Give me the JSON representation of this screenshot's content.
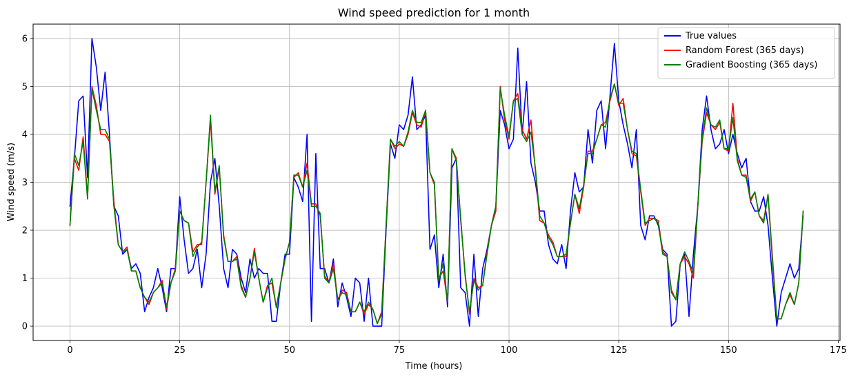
{
  "chart_data": {
    "type": "line",
    "title": "Wind speed prediction for 1 month",
    "xlabel": "Time (hours)",
    "ylabel": "Wind speed (m/s)",
    "xlim": [
      -8.4,
      175.4
    ],
    "ylim": [
      -0.3,
      6.3
    ],
    "xticks": [
      0,
      25,
      50,
      75,
      100,
      125,
      150,
      175
    ],
    "yticks": [
      0,
      1,
      2,
      3,
      4,
      5,
      6
    ],
    "grid": true,
    "legend_position": "top-right",
    "series": [
      {
        "name": "True values",
        "color": "#0000ff",
        "values": [
          2.5,
          3.5,
          4.7,
          4.8,
          3.1,
          6.0,
          5.4,
          4.5,
          5.3,
          4.0,
          2.5,
          2.3,
          1.5,
          1.6,
          1.2,
          1.3,
          1.1,
          0.3,
          0.6,
          0.8,
          1.2,
          0.8,
          0.3,
          1.2,
          1.2,
          2.7,
          1.8,
          1.1,
          1.2,
          1.6,
          0.8,
          1.5,
          3.0,
          3.5,
          2.5,
          1.2,
          0.8,
          1.6,
          1.5,
          1.0,
          0.7,
          1.4,
          1.0,
          1.2,
          1.1,
          1.1,
          0.1,
          0.1,
          0.9,
          1.5,
          1.5,
          3.1,
          2.9,
          2.6,
          4.0,
          0.1,
          3.6,
          1.2,
          1.2,
          0.9,
          1.4,
          0.4,
          0.9,
          0.6,
          0.2,
          1.0,
          0.9,
          0.1,
          1.0,
          0.0,
          0.0,
          0.0,
          2.0,
          3.8,
          3.5,
          4.2,
          4.1,
          4.4,
          5.2,
          4.1,
          4.2,
          4.4,
          1.6,
          1.9,
          0.8,
          1.5,
          0.4,
          3.3,
          3.5,
          0.8,
          0.7,
          0.0,
          1.5,
          0.2,
          1.2,
          1.6,
          2.1,
          2.5,
          4.5,
          4.2,
          3.7,
          3.9,
          5.8,
          4.0,
          5.1,
          3.4,
          3.0,
          2.4,
          2.4,
          1.7,
          1.4,
          1.3,
          1.7,
          1.2,
          2.4,
          3.2,
          2.8,
          2.9,
          4.1,
          3.4,
          4.5,
          4.7,
          3.7,
          4.8,
          5.9,
          4.7,
          4.2,
          3.8,
          3.3,
          4.1,
          2.1,
          1.8,
          2.3,
          2.3,
          2.1,
          1.6,
          1.5,
          0.0,
          0.1,
          1.3,
          1.5,
          0.2,
          1.5,
          2.5,
          4.1,
          4.8,
          4.1,
          3.7,
          3.8,
          4.1,
          3.6,
          4.0,
          3.6,
          3.3,
          3.5,
          2.6,
          2.4,
          2.4,
          2.7,
          2.1,
          1.0,
          0.0,
          0.7,
          1.0,
          1.3,
          1.0,
          1.2,
          2.3
        ]
      },
      {
        "name": "Random Forest (365 days)",
        "color": "#ff0000",
        "values": [
          2.1,
          3.5,
          3.25,
          3.95,
          2.7,
          5.0,
          4.6,
          4.0,
          4.0,
          3.85,
          2.6,
          1.7,
          1.55,
          1.65,
          1.15,
          1.15,
          0.8,
          0.6,
          0.45,
          0.7,
          0.8,
          0.95,
          0.35,
          0.9,
          1.2,
          2.4,
          2.2,
          2.15,
          1.55,
          1.7,
          1.7,
          3.0,
          4.3,
          2.75,
          3.3,
          1.9,
          1.35,
          1.35,
          1.45,
          0.85,
          0.6,
          1.0,
          1.62,
          1.0,
          0.5,
          0.85,
          0.9,
          0.4,
          0.9,
          1.4,
          1.75,
          3.1,
          3.2,
          2.9,
          3.4,
          2.55,
          2.55,
          2.3,
          1.05,
          0.9,
          1.3,
          0.55,
          0.75,
          0.7,
          0.3,
          0.3,
          0.5,
          0.25,
          0.45,
          0.35,
          0.05,
          0.3,
          2.1,
          3.9,
          3.7,
          3.8,
          3.75,
          4.0,
          4.45,
          4.2,
          4.15,
          4.5,
          3.2,
          2.95,
          1.0,
          1.15,
          0.5,
          3.7,
          3.5,
          2.2,
          1.1,
          0.25,
          1.0,
          0.8,
          0.85,
          1.55,
          2.1,
          2.4,
          5.0,
          4.3,
          3.9,
          4.7,
          4.85,
          4.1,
          3.9,
          4.3,
          3.25,
          2.2,
          2.15,
          1.9,
          1.75,
          1.45,
          1.45,
          1.45,
          2.15,
          2.75,
          2.35,
          2.9,
          3.65,
          3.65,
          3.9,
          4.2,
          4.25,
          4.7,
          5.05,
          4.6,
          4.75,
          4.1,
          3.6,
          3.55,
          2.8,
          2.1,
          2.25,
          2.25,
          2.2,
          1.55,
          1.45,
          0.75,
          0.55,
          1.3,
          1.45,
          1.3,
          1.0,
          2.5,
          3.85,
          4.45,
          4.2,
          4.1,
          4.25,
          3.7,
          3.65,
          4.65,
          3.5,
          3.15,
          3.15,
          2.6,
          2.8,
          2.3,
          2.2,
          2.75,
          1.45,
          0.15,
          0.15,
          0.45,
          0.65,
          0.45,
          0.9,
          2.4
        ]
      },
      {
        "name": "Gradient Boosting (365 days)",
        "color": "#008000",
        "values": [
          2.1,
          3.6,
          3.35,
          3.85,
          2.65,
          4.95,
          4.5,
          4.1,
          4.1,
          3.9,
          2.5,
          1.7,
          1.55,
          1.6,
          1.15,
          1.15,
          0.8,
          0.6,
          0.5,
          0.7,
          0.8,
          0.9,
          0.4,
          0.9,
          1.15,
          2.4,
          2.2,
          2.15,
          1.45,
          1.65,
          1.75,
          3.0,
          4.4,
          2.8,
          3.35,
          1.85,
          1.35,
          1.35,
          1.4,
          0.8,
          0.6,
          1.0,
          1.55,
          1.0,
          0.5,
          0.8,
          1.0,
          0.38,
          0.9,
          1.4,
          1.75,
          3.15,
          3.15,
          2.9,
          3.25,
          2.5,
          2.5,
          2.35,
          1.0,
          0.9,
          1.2,
          0.55,
          0.7,
          0.65,
          0.3,
          0.3,
          0.5,
          0.3,
          0.5,
          0.35,
          0.05,
          0.25,
          2.1,
          3.9,
          3.75,
          3.85,
          3.75,
          4.05,
          4.5,
          4.25,
          4.25,
          4.5,
          3.2,
          3.0,
          0.95,
          1.3,
          0.5,
          3.7,
          3.45,
          2.25,
          1.05,
          0.3,
          0.95,
          0.75,
          0.85,
          1.5,
          2.1,
          2.5,
          4.95,
          4.4,
          3.95,
          4.7,
          4.75,
          4.0,
          3.85,
          4.05,
          3.3,
          2.3,
          2.15,
          1.85,
          1.7,
          1.45,
          1.45,
          1.5,
          2.15,
          2.75,
          2.45,
          2.95,
          3.6,
          3.6,
          3.9,
          4.2,
          4.15,
          4.75,
          5.05,
          4.65,
          4.65,
          4.1,
          3.65,
          3.6,
          2.85,
          2.15,
          2.2,
          2.25,
          2.15,
          1.5,
          1.45,
          0.7,
          0.55,
          1.3,
          1.55,
          1.35,
          1.1,
          2.5,
          3.9,
          4.55,
          4.2,
          4.15,
          4.3,
          3.7,
          3.7,
          4.35,
          3.45,
          3.15,
          3.1,
          2.65,
          2.8,
          2.3,
          2.15,
          2.75,
          1.35,
          0.15,
          0.15,
          0.45,
          0.7,
          0.45,
          0.9,
          2.4
        ]
      }
    ]
  }
}
